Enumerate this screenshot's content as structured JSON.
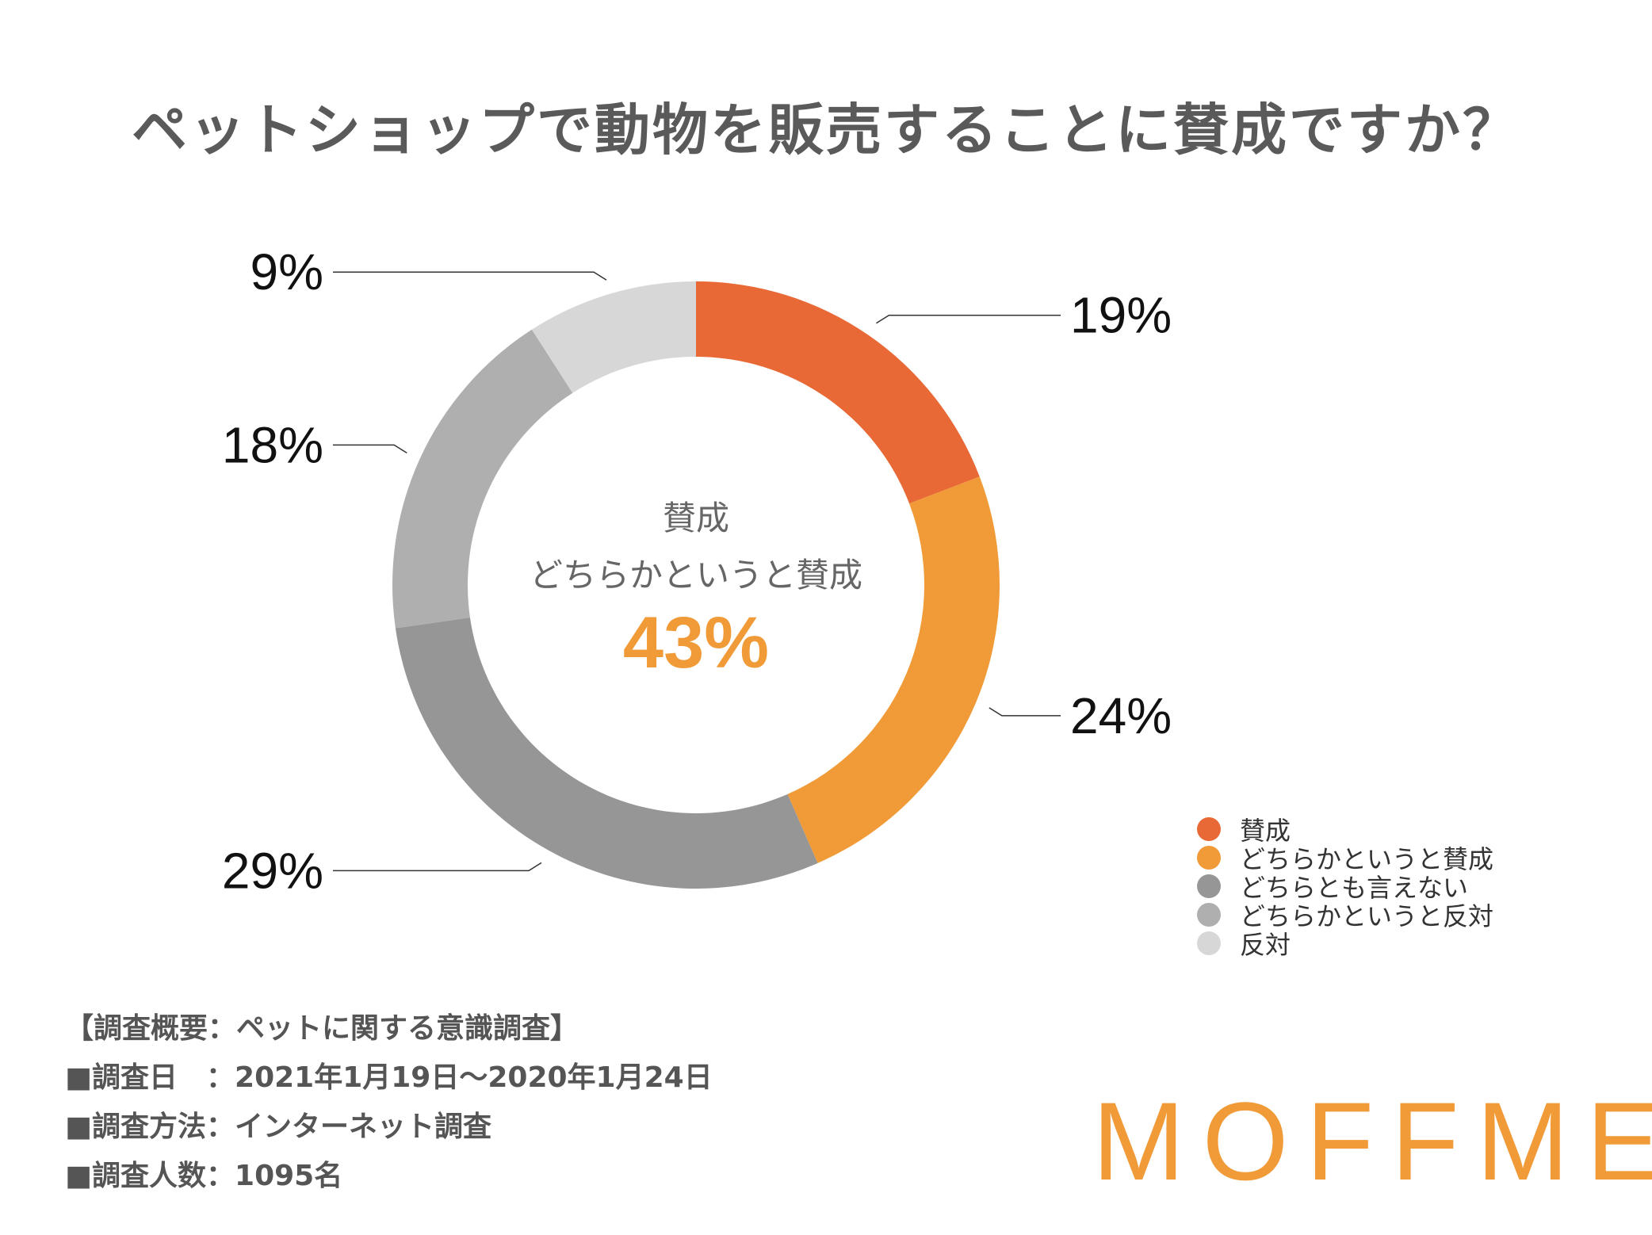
{
  "title": "ペットショップで動物を販売することに賛成ですか？",
  "chart_data": {
    "type": "pie",
    "categories": [
      "賛成",
      "どちらかというと賛成",
      "どちらとも言えない",
      "どちらかというと反対",
      "反対"
    ],
    "values": [
      19,
      24,
      29,
      18,
      9
    ],
    "value_labels": [
      "19%",
      "24%",
      "29%",
      "18%",
      "9%"
    ],
    "colors": [
      "#e86935",
      "#f19a38",
      "#969696",
      "#afafaf",
      "#d7d7d7"
    ],
    "center": {
      "line1": "賛成",
      "line2": "どちらかというと賛成",
      "value": "43%",
      "value_color": "#f19a38"
    },
    "legend_position": "bottom-right"
  },
  "survey": {
    "lines": [
      "【調査概要：ペットに関する意識調査】",
      "■調査日　：2021年1月19日〜2020年1月24日",
      "■調査方法：インターネット調査",
      "■調査人数：1095名"
    ]
  },
  "brand": "MOFFME"
}
